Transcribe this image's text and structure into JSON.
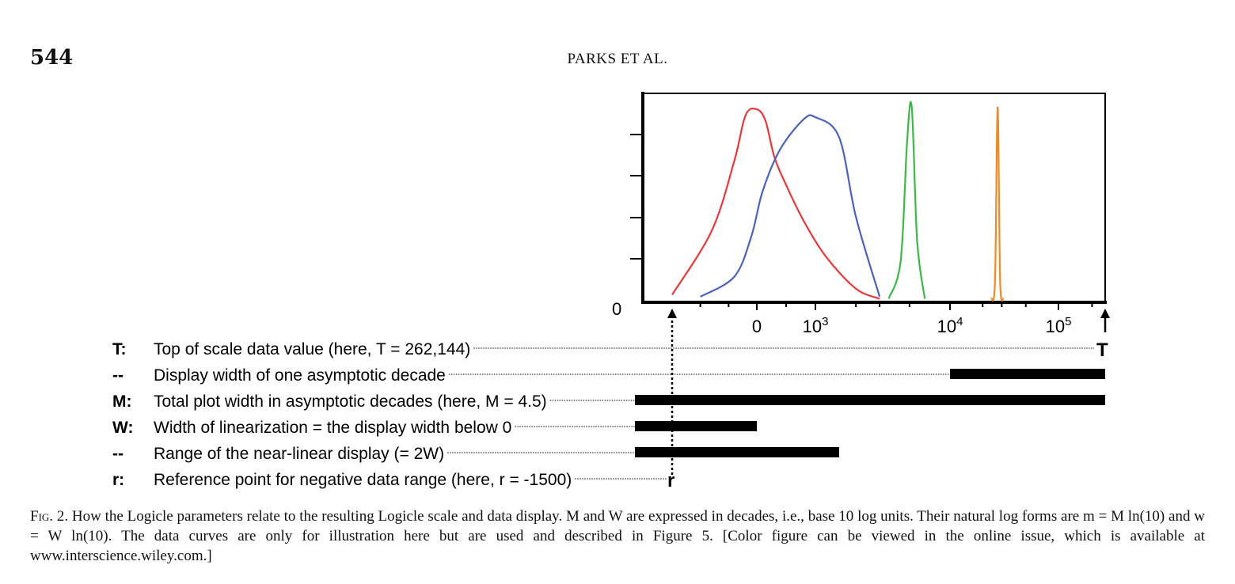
{
  "page": {
    "number": "544",
    "running_head": "PARKS ET AL."
  },
  "chart_data": {
    "type": "line",
    "title": "",
    "xlabel": "",
    "ylabel": "",
    "x_scale": "logicle",
    "x_ticks": [
      {
        "value": 0,
        "label": "0"
      },
      {
        "value": 1000,
        "label": "10",
        "exp": "3"
      },
      {
        "value": 10000,
        "label": "10",
        "exp": "4"
      },
      {
        "value": 100000,
        "label": "10",
        "exp": "5"
      }
    ],
    "xlim": [
      -1500,
      262144
    ],
    "y_tick_labels": [
      "0"
    ],
    "grid": false,
    "colors": {
      "red": "#e8393a",
      "blue": "#4a63b8",
      "green": "#3cb84a",
      "orange": "#f08a24"
    },
    "series": [
      {
        "color": "red",
        "x": [
          -1500,
          -800,
          -400,
          -200,
          0,
          150,
          300,
          500,
          800,
          1200,
          2000,
          3000
        ],
        "y": [
          0.03,
          0.35,
          0.7,
          0.93,
          0.96,
          0.9,
          0.72,
          0.58,
          0.4,
          0.22,
          0.06,
          0.01
        ]
      },
      {
        "color": "blue",
        "x": [
          -1000,
          -400,
          -100,
          100,
          400,
          800,
          1000,
          1500,
          2000,
          3000
        ],
        "y": [
          0.02,
          0.12,
          0.32,
          0.55,
          0.76,
          0.91,
          0.92,
          0.82,
          0.42,
          0.02
        ]
      },
      {
        "color": "green",
        "x": [
          3500,
          4300,
          4800,
          5200,
          5700,
          6500
        ],
        "y": [
          0.01,
          0.2,
          0.8,
          0.97,
          0.3,
          0.01
        ]
      },
      {
        "color": "orange",
        "x": [
          24000,
          26000,
          27500,
          29000,
          31000
        ],
        "y": [
          0.01,
          0.1,
          0.97,
          0.1,
          0.01
        ]
      }
    ],
    "markers": {
      "top": "T",
      "reference": "r"
    }
  },
  "params": [
    {
      "key": "T:",
      "text": "Top of scale data value (here, T = 262,144)",
      "marker": "T"
    },
    {
      "key": "--",
      "text": "Display width of one asymptotic decade",
      "range": [
        10000,
        262144
      ]
    },
    {
      "key": "M:",
      "text": "Total plot width in asymptotic decades (here, M = 4.5)",
      "range": [
        -1500,
        262144
      ]
    },
    {
      "key": "W:",
      "text": "Width of linearization = the display width below 0",
      "range": [
        -1500,
        0
      ]
    },
    {
      "key": "--",
      "text": "Range of the near-linear display (= 2W)",
      "range": [
        -1500,
        1500
      ]
    },
    {
      "key": "r:",
      "text": "Reference point for negative data range (here, r = -1500)",
      "marker": "r"
    }
  ],
  "caption": {
    "label": "Fig. 2.",
    "text": "How the Logicle parameters relate to the resulting Logicle scale and data display. M and W are expressed in decades, i.e., base 10 log units. Their natural log forms are m = M ln(10) and w = W ln(10). The data curves are only for illustration here but are used and described in Figure 5. [Color figure can be viewed in the online issue, which is available at www.interscience.wiley.com.]"
  }
}
